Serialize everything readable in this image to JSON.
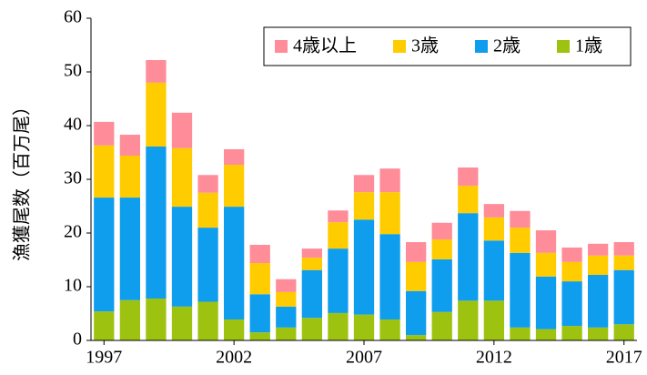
{
  "chart_data": {
    "type": "stacked_bar",
    "y_label": "漁獲尾数（百万尾）",
    "categories": [
      "1997",
      null,
      null,
      null,
      null,
      "2002",
      null,
      null,
      null,
      null,
      "2007",
      null,
      null,
      null,
      null,
      "2012",
      null,
      null,
      null,
      null,
      "2017"
    ],
    "series": [
      {
        "name": "1歳",
        "color": "#9dc310",
        "values": [
          5.4,
          7.5,
          7.8,
          6.3,
          7.2,
          3.9,
          1.5,
          2.4,
          4.2,
          5.1,
          4.8,
          3.9,
          1.0,
          5.3,
          7.4,
          7.4,
          2.4,
          2.1,
          2.7,
          2.4,
          3.0
        ]
      },
      {
        "name": "2歳",
        "color": "#0f9ded",
        "values": [
          21.2,
          19.1,
          28.3,
          18.6,
          13.8,
          21.0,
          7.1,
          3.9,
          8.9,
          12.0,
          17.7,
          15.9,
          8.2,
          9.8,
          16.3,
          11.2,
          13.9,
          9.8,
          8.3,
          9.8,
          10.1
        ]
      },
      {
        "name": "3歳",
        "color": "#ffcc00",
        "values": [
          9.7,
          7.8,
          11.9,
          10.9,
          6.5,
          7.8,
          5.8,
          2.7,
          2.3,
          4.9,
          5.1,
          7.8,
          5.4,
          3.7,
          5.1,
          4.3,
          4.7,
          4.4,
          3.6,
          3.6,
          2.7
        ]
      },
      {
        "name": "4歳以上",
        "color": "#ff8c99",
        "values": [
          4.4,
          3.9,
          4.2,
          6.6,
          3.3,
          2.9,
          3.4,
          2.4,
          1.7,
          2.2,
          3.2,
          4.4,
          3.7,
          3.1,
          3.4,
          2.5,
          3.1,
          4.2,
          2.7,
          2.2,
          2.5
        ]
      }
    ],
    "ylim": [
      0,
      60
    ],
    "yticks": [
      0,
      10,
      20,
      30,
      40,
      50,
      60
    ],
    "grid": false,
    "legend": "top-right"
  }
}
